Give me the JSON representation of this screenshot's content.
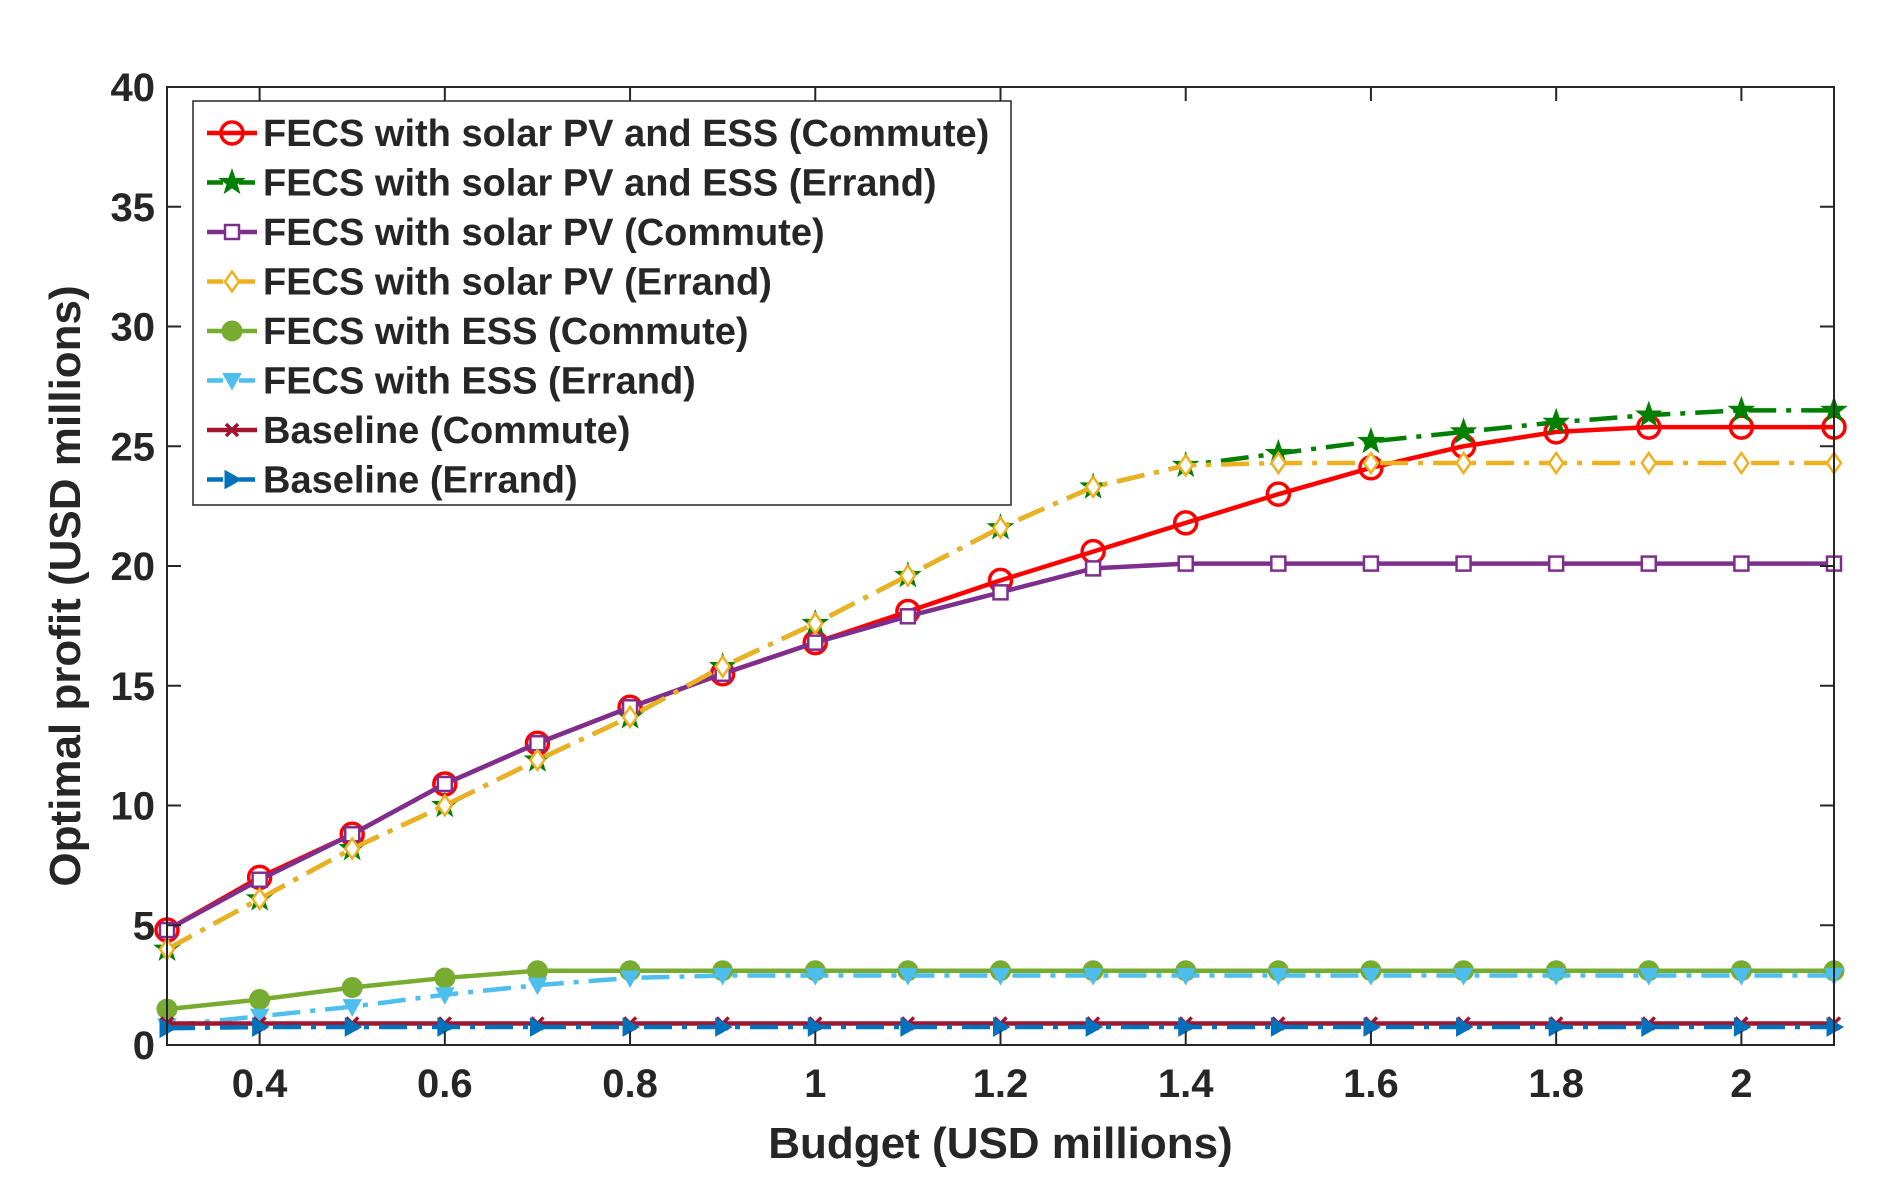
{
  "chart_data": {
    "type": "line",
    "title": "",
    "xlabel": "Budget (USD millions)",
    "ylabel": "Optimal profit (USD millions)",
    "xlim": [
      0.3,
      2.1
    ],
    "ylim": [
      0,
      40
    ],
    "xticks": [
      0.4,
      0.6,
      0.8,
      1,
      1.2,
      1.4,
      1.6,
      1.8,
      2
    ],
    "xtick_labels": [
      "0.4",
      "0.6",
      "0.8",
      "1",
      "1.2",
      "1.4",
      "1.6",
      "1.8",
      "2"
    ],
    "yticks": [
      0,
      5,
      10,
      15,
      20,
      25,
      30,
      35,
      40
    ],
    "ytick_labels": [
      "0",
      "5",
      "10",
      "15",
      "20",
      "25",
      "30",
      "35",
      "40"
    ],
    "grid": false,
    "legend_position": "top-left",
    "x": [
      0.3,
      0.4,
      0.5,
      0.6,
      0.7,
      0.8,
      0.9,
      1.0,
      1.1,
      1.2,
      1.3,
      1.4,
      1.5,
      1.6,
      1.7,
      1.8,
      1.9,
      2.0,
      2.1
    ],
    "series": [
      {
        "name": "FECS with solar PV and ESS (Commute)",
        "color": "#ff0000",
        "dash": "solid",
        "marker": "circle",
        "values": [
          4.8,
          7.0,
          8.8,
          10.9,
          12.6,
          14.1,
          15.5,
          16.8,
          18.1,
          19.4,
          20.6,
          21.8,
          23.0,
          24.1,
          25.0,
          25.6,
          25.8,
          25.8,
          25.8
        ]
      },
      {
        "name": "FECS with solar PV and ESS (Errand)",
        "color": "#007f00",
        "dash": "dashdot",
        "marker": "star",
        "values": [
          4.0,
          6.1,
          8.2,
          10.0,
          11.9,
          13.7,
          15.8,
          17.6,
          19.6,
          21.6,
          23.3,
          24.2,
          24.7,
          25.2,
          25.6,
          26.0,
          26.3,
          26.5,
          26.5
        ]
      },
      {
        "name": "FECS with solar PV (Commute)",
        "color": "#7e2f8e",
        "dash": "solid",
        "marker": "square",
        "values": [
          4.8,
          6.9,
          8.8,
          10.9,
          12.6,
          14.1,
          15.5,
          16.8,
          17.9,
          18.9,
          19.9,
          20.1,
          20.1,
          20.1,
          20.1,
          20.1,
          20.1,
          20.1,
          20.1
        ]
      },
      {
        "name": "FECS with solar PV (Errand)",
        "color": "#edb120",
        "dash": "dashdot",
        "marker": "diamond",
        "values": [
          4.0,
          6.1,
          8.2,
          10.0,
          11.9,
          13.7,
          15.8,
          17.6,
          19.6,
          21.6,
          23.3,
          24.2,
          24.3,
          24.3,
          24.3,
          24.3,
          24.3,
          24.3,
          24.3
        ]
      },
      {
        "name": "FECS with ESS (Commute)",
        "color": "#77ac30",
        "dash": "solid",
        "marker": "filled-circle",
        "values": [
          1.5,
          1.9,
          2.4,
          2.8,
          3.1,
          3.1,
          3.1,
          3.1,
          3.1,
          3.1,
          3.1,
          3.1,
          3.1,
          3.1,
          3.1,
          3.1,
          3.1,
          3.1,
          3.1
        ]
      },
      {
        "name": "FECS with ESS (Errand)",
        "color": "#4dbeee",
        "dash": "dashdot",
        "marker": "triangle-down",
        "values": [
          0.8,
          1.2,
          1.6,
          2.1,
          2.5,
          2.8,
          2.9,
          2.9,
          2.9,
          2.9,
          2.9,
          2.9,
          2.9,
          2.9,
          2.9,
          2.9,
          2.9,
          2.9,
          2.9
        ]
      },
      {
        "name": "Baseline (Commute)",
        "color": "#a2142f",
        "dash": "solid",
        "marker": "x",
        "values": [
          0.9,
          0.9,
          0.9,
          0.9,
          0.9,
          0.9,
          0.9,
          0.9,
          0.9,
          0.9,
          0.9,
          0.9,
          0.9,
          0.9,
          0.9,
          0.9,
          0.9,
          0.9,
          0.9
        ]
      },
      {
        "name": "Baseline (Errand)",
        "color": "#0072bd",
        "dash": "dashdot",
        "marker": "triangle-right",
        "values": [
          0.7,
          0.75,
          0.75,
          0.75,
          0.75,
          0.75,
          0.75,
          0.75,
          0.75,
          0.75,
          0.75,
          0.75,
          0.75,
          0.75,
          0.75,
          0.75,
          0.75,
          0.75,
          0.75
        ]
      }
    ]
  }
}
